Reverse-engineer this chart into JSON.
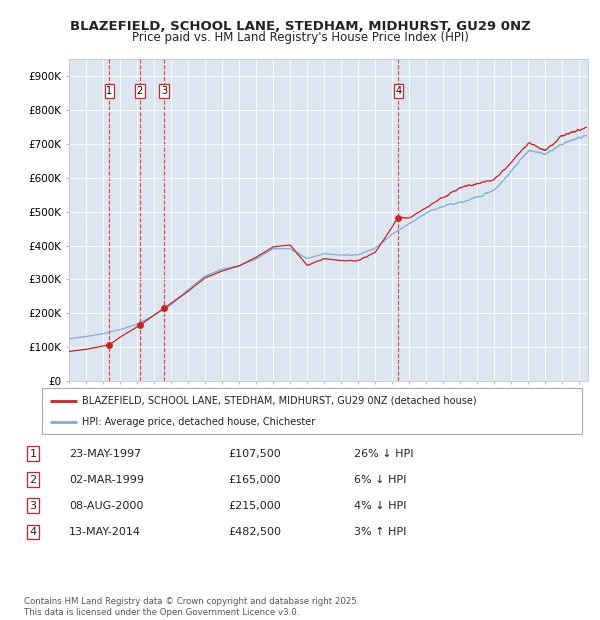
{
  "title1": "BLAZEFIELD, SCHOOL LANE, STEDHAM, MIDHURST, GU29 0NZ",
  "title2": "Price paid vs. HM Land Registry's House Price Index (HPI)",
  "background_color": "#dce6f1",
  "fig_bg_color": "#ffffff",
  "red_line_label": "BLAZEFIELD, SCHOOL LANE, STEDHAM, MIDHURST, GU29 0NZ (detached house)",
  "blue_line_label": "HPI: Average price, detached house, Chichester",
  "transactions": [
    {
      "num": 1,
      "date": "23-MAY-1997",
      "price": 107500,
      "year": 1997.38,
      "pct": "26%",
      "dir": "↓"
    },
    {
      "num": 2,
      "date": "02-MAR-1999",
      "price": 165000,
      "year": 1999.16,
      "pct": "6%",
      "dir": "↓"
    },
    {
      "num": 3,
      "date": "08-AUG-2000",
      "price": 215000,
      "year": 2000.58,
      "pct": "4%",
      "dir": "↓"
    },
    {
      "num": 4,
      "date": "13-MAY-2014",
      "price": 482500,
      "year": 2014.36,
      "pct": "3%",
      "dir": "↑"
    }
  ],
  "footer": "Contains HM Land Registry data © Crown copyright and database right 2025.\nThis data is licensed under the Open Government Licence v3.0.",
  "ylim": [
    0,
    950000
  ],
  "xlim_start": 1995.0,
  "xlim_end": 2025.5,
  "yticks": [
    0,
    100000,
    200000,
    300000,
    400000,
    500000,
    600000,
    700000,
    800000,
    900000
  ],
  "ytick_labels": [
    "£0",
    "£100K",
    "£200K",
    "£300K",
    "£400K",
    "£500K",
    "£600K",
    "£700K",
    "£800K",
    "£900K"
  ]
}
